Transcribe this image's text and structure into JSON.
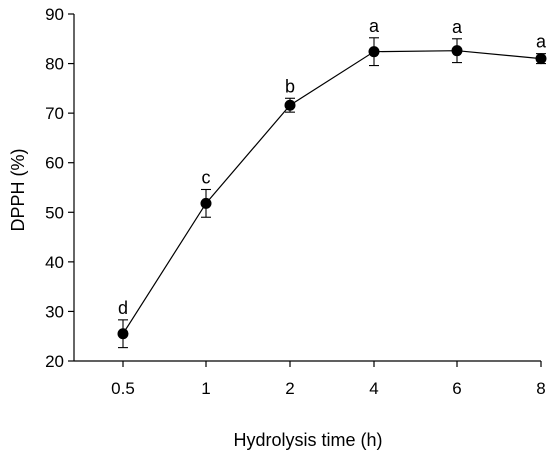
{
  "chart_data": {
    "type": "line",
    "xlabel": "Hydrolysis time (h)",
    "ylabel": "DPPH (%)",
    "categories": [
      "0.5",
      "1",
      "2",
      "4",
      "6",
      "8"
    ],
    "ylim": [
      20,
      90
    ],
    "yticks": [
      20,
      30,
      40,
      50,
      60,
      70,
      80,
      90
    ],
    "series": [
      {
        "values": [
          25.5,
          51.8,
          71.6,
          82.4,
          82.6,
          81.0
        ],
        "errors": [
          2.8,
          2.8,
          1.4,
          2.8,
          2.4,
          1.0
        ],
        "significance": [
          "d",
          "c",
          "b",
          "a",
          "a",
          "a"
        ]
      }
    ],
    "colors": {
      "line": "#000000",
      "marker": "#000000"
    },
    "grid": false,
    "legend": "none"
  }
}
